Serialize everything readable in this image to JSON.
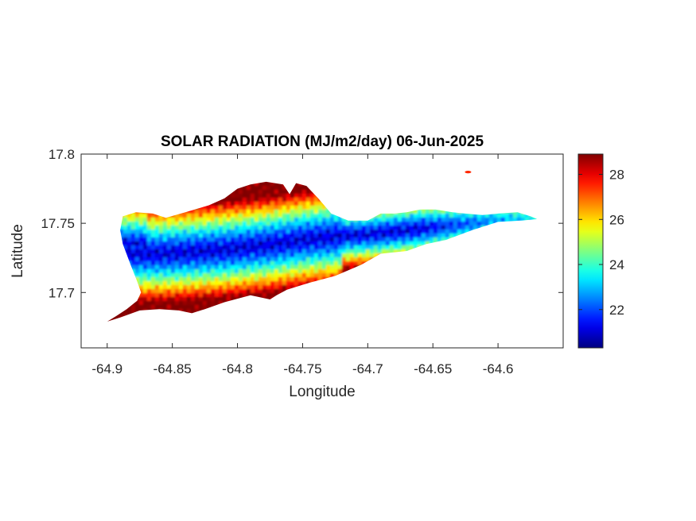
{
  "chart_data": {
    "type": "heatmap",
    "title": "SOLAR RADIATION (MJ/m2/day) 06-Jun-2025",
    "xlabel": "Longitude",
    "ylabel": "Latitude",
    "xlim": [
      -64.92,
      -64.55
    ],
    "ylim": [
      17.66,
      17.8
    ],
    "x_ticks": [
      -64.9,
      -64.85,
      -64.8,
      -64.75,
      -64.7,
      -64.65,
      -64.6
    ],
    "x_tick_labels": [
      "-64.9",
      "-64.85",
      "-64.8",
      "-64.75",
      "-64.7",
      "-64.65",
      "-64.6"
    ],
    "y_ticks": [
      17.7,
      17.75,
      17.8
    ],
    "y_tick_labels": [
      "17.7",
      "17.75",
      "17.8"
    ],
    "colorbar": {
      "colormap": "jet",
      "range": [
        20.3,
        28.9
      ],
      "ticks": [
        22,
        24,
        26,
        28
      ],
      "tick_labels": [
        "22",
        "24",
        "26",
        "28"
      ]
    },
    "grid": false,
    "region": {
      "name_hint": "island outline",
      "outline": [
        [
          -64.9,
          17.679
        ],
        [
          -64.893,
          17.683
        ],
        [
          -64.885,
          17.688
        ],
        [
          -64.877,
          17.694
        ],
        [
          -64.874,
          17.7
        ],
        [
          -64.877,
          17.708
        ],
        [
          -64.882,
          17.72
        ],
        [
          -64.888,
          17.735
        ],
        [
          -64.89,
          17.745
        ],
        [
          -64.888,
          17.755
        ],
        [
          -64.878,
          17.758
        ],
        [
          -64.865,
          17.757
        ],
        [
          -64.855,
          17.754
        ],
        [
          -64.84,
          17.758
        ],
        [
          -64.822,
          17.763
        ],
        [
          -64.81,
          17.768
        ],
        [
          -64.8,
          17.775
        ],
        [
          -64.79,
          17.778
        ],
        [
          -64.778,
          17.78
        ],
        [
          -64.765,
          17.778
        ],
        [
          -64.76,
          17.771
        ],
        [
          -64.755,
          17.779
        ],
        [
          -64.747,
          17.777
        ],
        [
          -64.738,
          17.768
        ],
        [
          -64.728,
          17.757
        ],
        [
          -64.715,
          17.752
        ],
        [
          -64.7,
          17.752
        ],
        [
          -64.69,
          17.757
        ],
        [
          -64.68,
          17.757
        ],
        [
          -64.67,
          17.758
        ],
        [
          -64.66,
          17.76
        ],
        [
          -64.648,
          17.76
        ],
        [
          -64.635,
          17.758
        ],
        [
          -64.625,
          17.757
        ],
        [
          -64.612,
          17.756
        ],
        [
          -64.6,
          17.757
        ],
        [
          -64.585,
          17.758
        ],
        [
          -64.575,
          17.755
        ],
        [
          -64.57,
          17.753
        ],
        [
          -64.582,
          17.752
        ],
        [
          -64.6,
          17.751
        ],
        [
          -64.62,
          17.745
        ],
        [
          -64.64,
          17.738
        ],
        [
          -64.655,
          17.735
        ],
        [
          -64.67,
          17.73
        ],
        [
          -64.69,
          17.728
        ],
        [
          -64.705,
          17.72
        ],
        [
          -64.725,
          17.712
        ],
        [
          -64.745,
          17.707
        ],
        [
          -64.762,
          17.702
        ],
        [
          -64.77,
          17.698
        ],
        [
          -64.775,
          17.695
        ],
        [
          -64.79,
          17.698
        ],
        [
          -64.81,
          17.693
        ],
        [
          -64.825,
          17.688
        ],
        [
          -64.835,
          17.685
        ],
        [
          -64.845,
          17.687
        ],
        [
          -64.86,
          17.688
        ],
        [
          -64.875,
          17.687
        ],
        [
          -64.89,
          17.682
        ]
      ],
      "islet": [
        -64.623,
        17.787
      ],
      "field_description": "low values (~21-22) along a central east-west band near latitude 17.73, rising to ~28-29 toward the north and south coasts and the eastern tip"
    },
    "field_centerline": [
      [
        -64.89,
        17.728
      ],
      [
        -64.86,
        17.728
      ],
      [
        -64.84,
        17.729
      ],
      [
        -64.81,
        17.731
      ],
      [
        -64.78,
        17.734
      ],
      [
        -64.75,
        17.738
      ],
      [
        -64.72,
        17.741
      ],
      [
        -64.7,
        17.742
      ],
      [
        -64.67,
        17.745
      ],
      [
        -64.64,
        17.748
      ],
      [
        -64.6,
        17.752
      ],
      [
        -64.57,
        17.754
      ]
    ]
  }
}
